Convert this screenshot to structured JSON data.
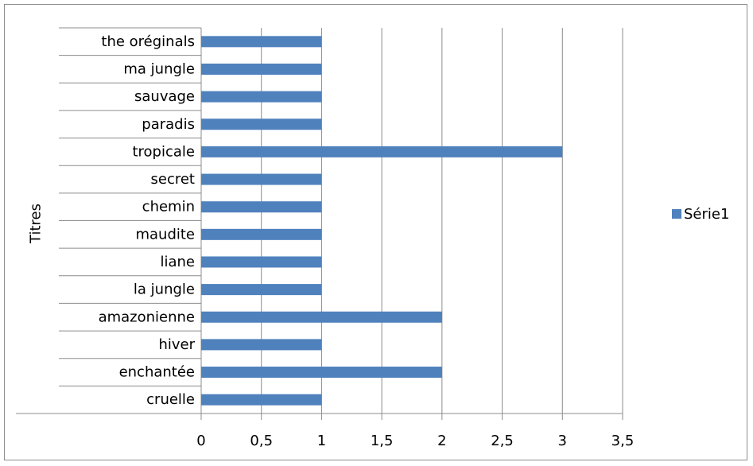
{
  "chart_data": {
    "type": "bar",
    "orientation": "horizontal",
    "ylabel": "Titres",
    "categories": [
      "the oréginals",
      "ma jungle",
      "sauvage",
      "paradis",
      "tropicale",
      "secret",
      "chemin",
      "maudite",
      "liane",
      "la jungle",
      "amazonienne",
      "hiver",
      "enchantée",
      "cruelle"
    ],
    "series": [
      {
        "name": "Série1",
        "values": [
          1,
          1,
          1,
          1,
          3,
          1,
          1,
          1,
          1,
          1,
          2,
          1,
          2,
          1
        ],
        "color": "#4f81bd"
      }
    ],
    "xticks": [
      "0",
      "0,5",
      "1",
      "1,5",
      "2",
      "2,5",
      "3",
      "3,5"
    ],
    "xlim": [
      0,
      3.5
    ],
    "grid": "vertical",
    "legend": "right"
  }
}
